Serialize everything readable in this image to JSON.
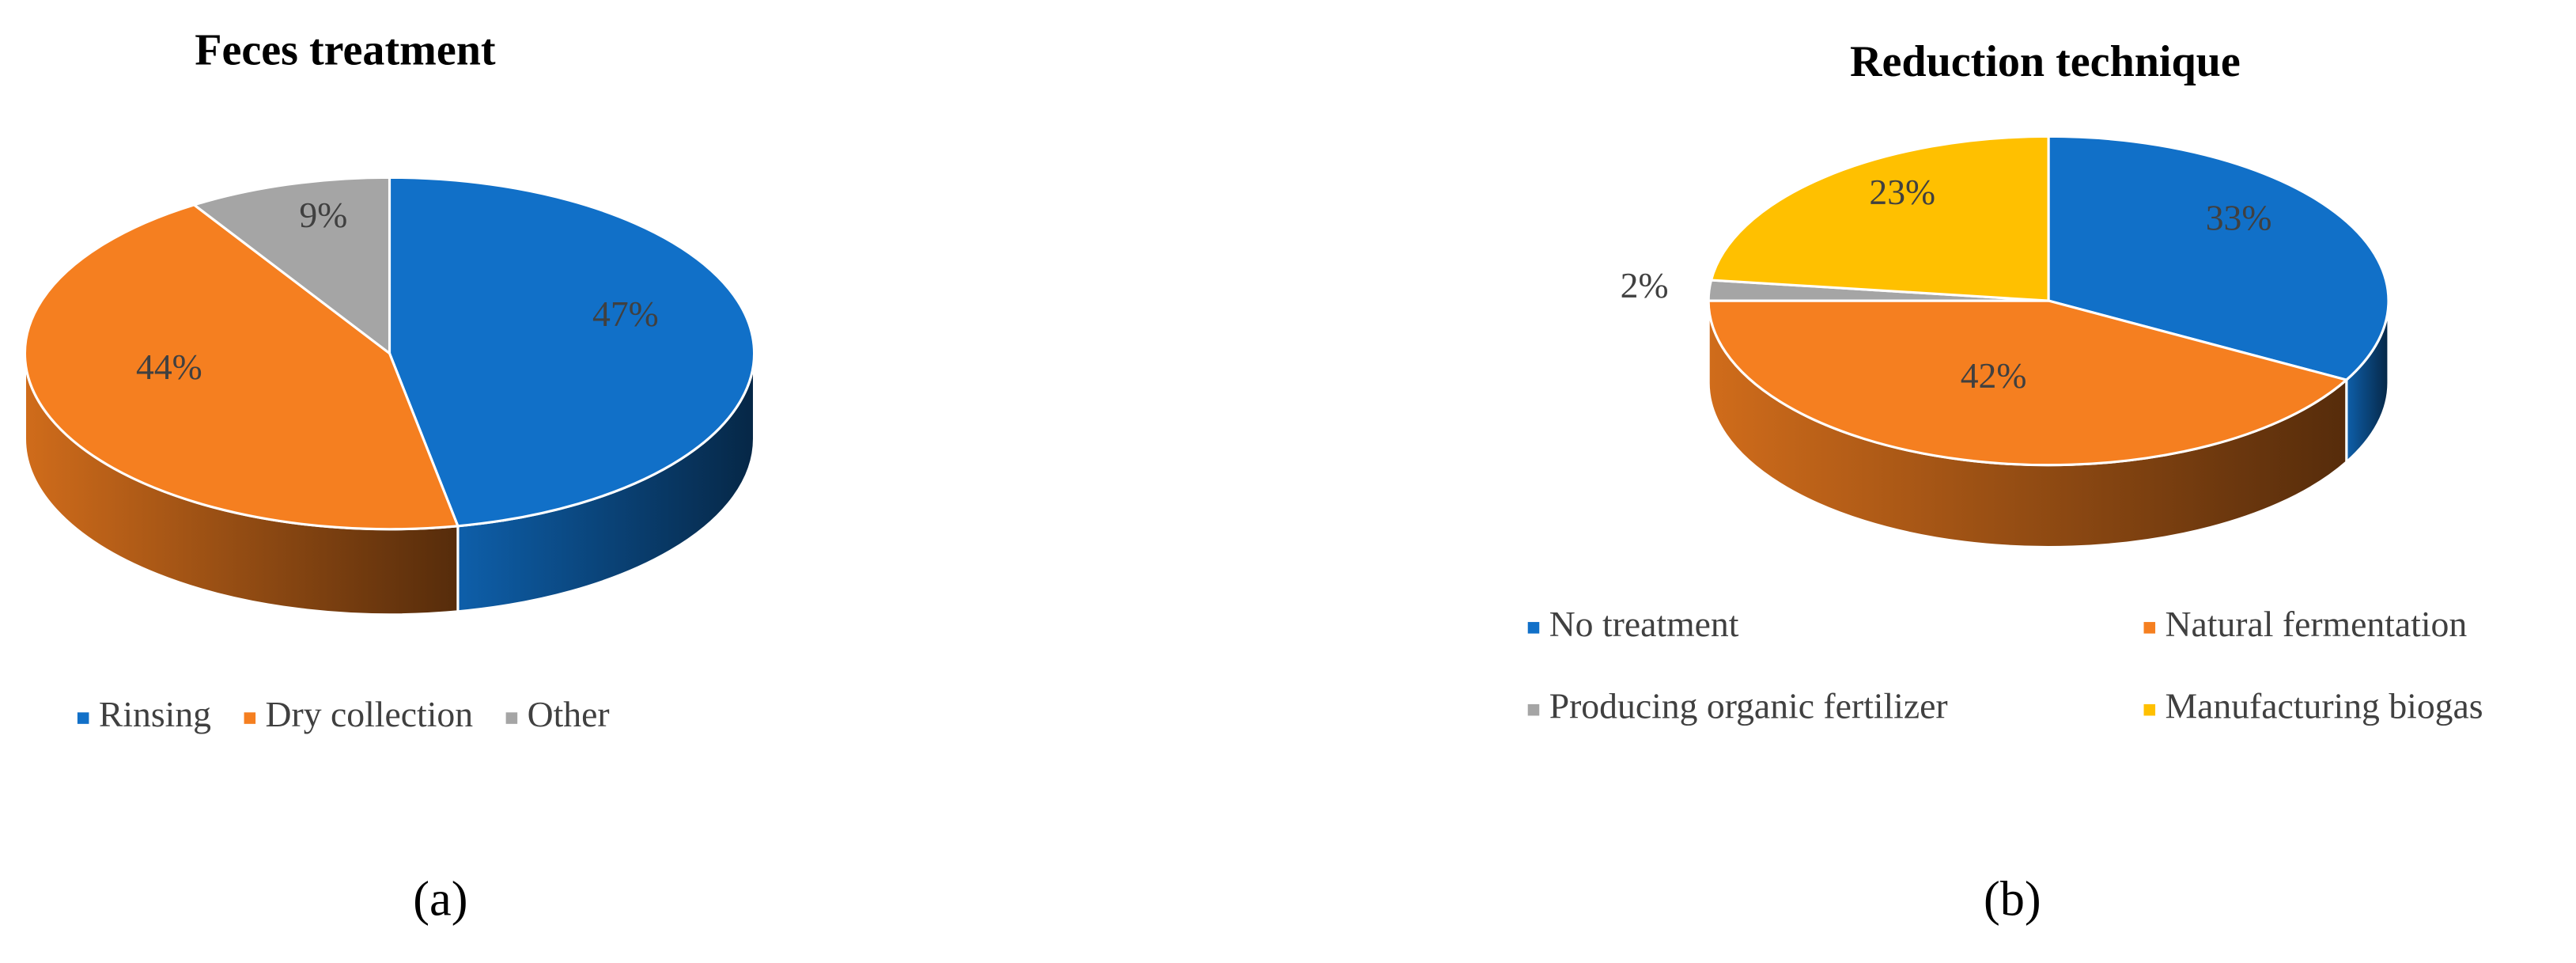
{
  "chart_data": [
    {
      "type": "pie",
      "title": "Feces treatment",
      "panel_label": "(a)",
      "categories": [
        "Rinsing",
        "Dry collection",
        "Other"
      ],
      "values": [
        47,
        44,
        9
      ],
      "value_labels": [
        "47%",
        "44%",
        "9%"
      ],
      "colors": [
        "#1170c8",
        "#f57f20",
        "#a5a5a5"
      ]
    },
    {
      "type": "pie",
      "title": "Reduction technique",
      "panel_label": "(b)",
      "categories": [
        "No treatment",
        "Natural fermentation",
        "Producing organic fertilizer",
        "Manufacturing biogas"
      ],
      "values": [
        33,
        42,
        2,
        23
      ],
      "value_labels": [
        "33%",
        "42%",
        "2%",
        "23%"
      ],
      "colors": [
        "#1170c8",
        "#f57f20",
        "#a5a5a5",
        "#ffc000"
      ]
    }
  ]
}
